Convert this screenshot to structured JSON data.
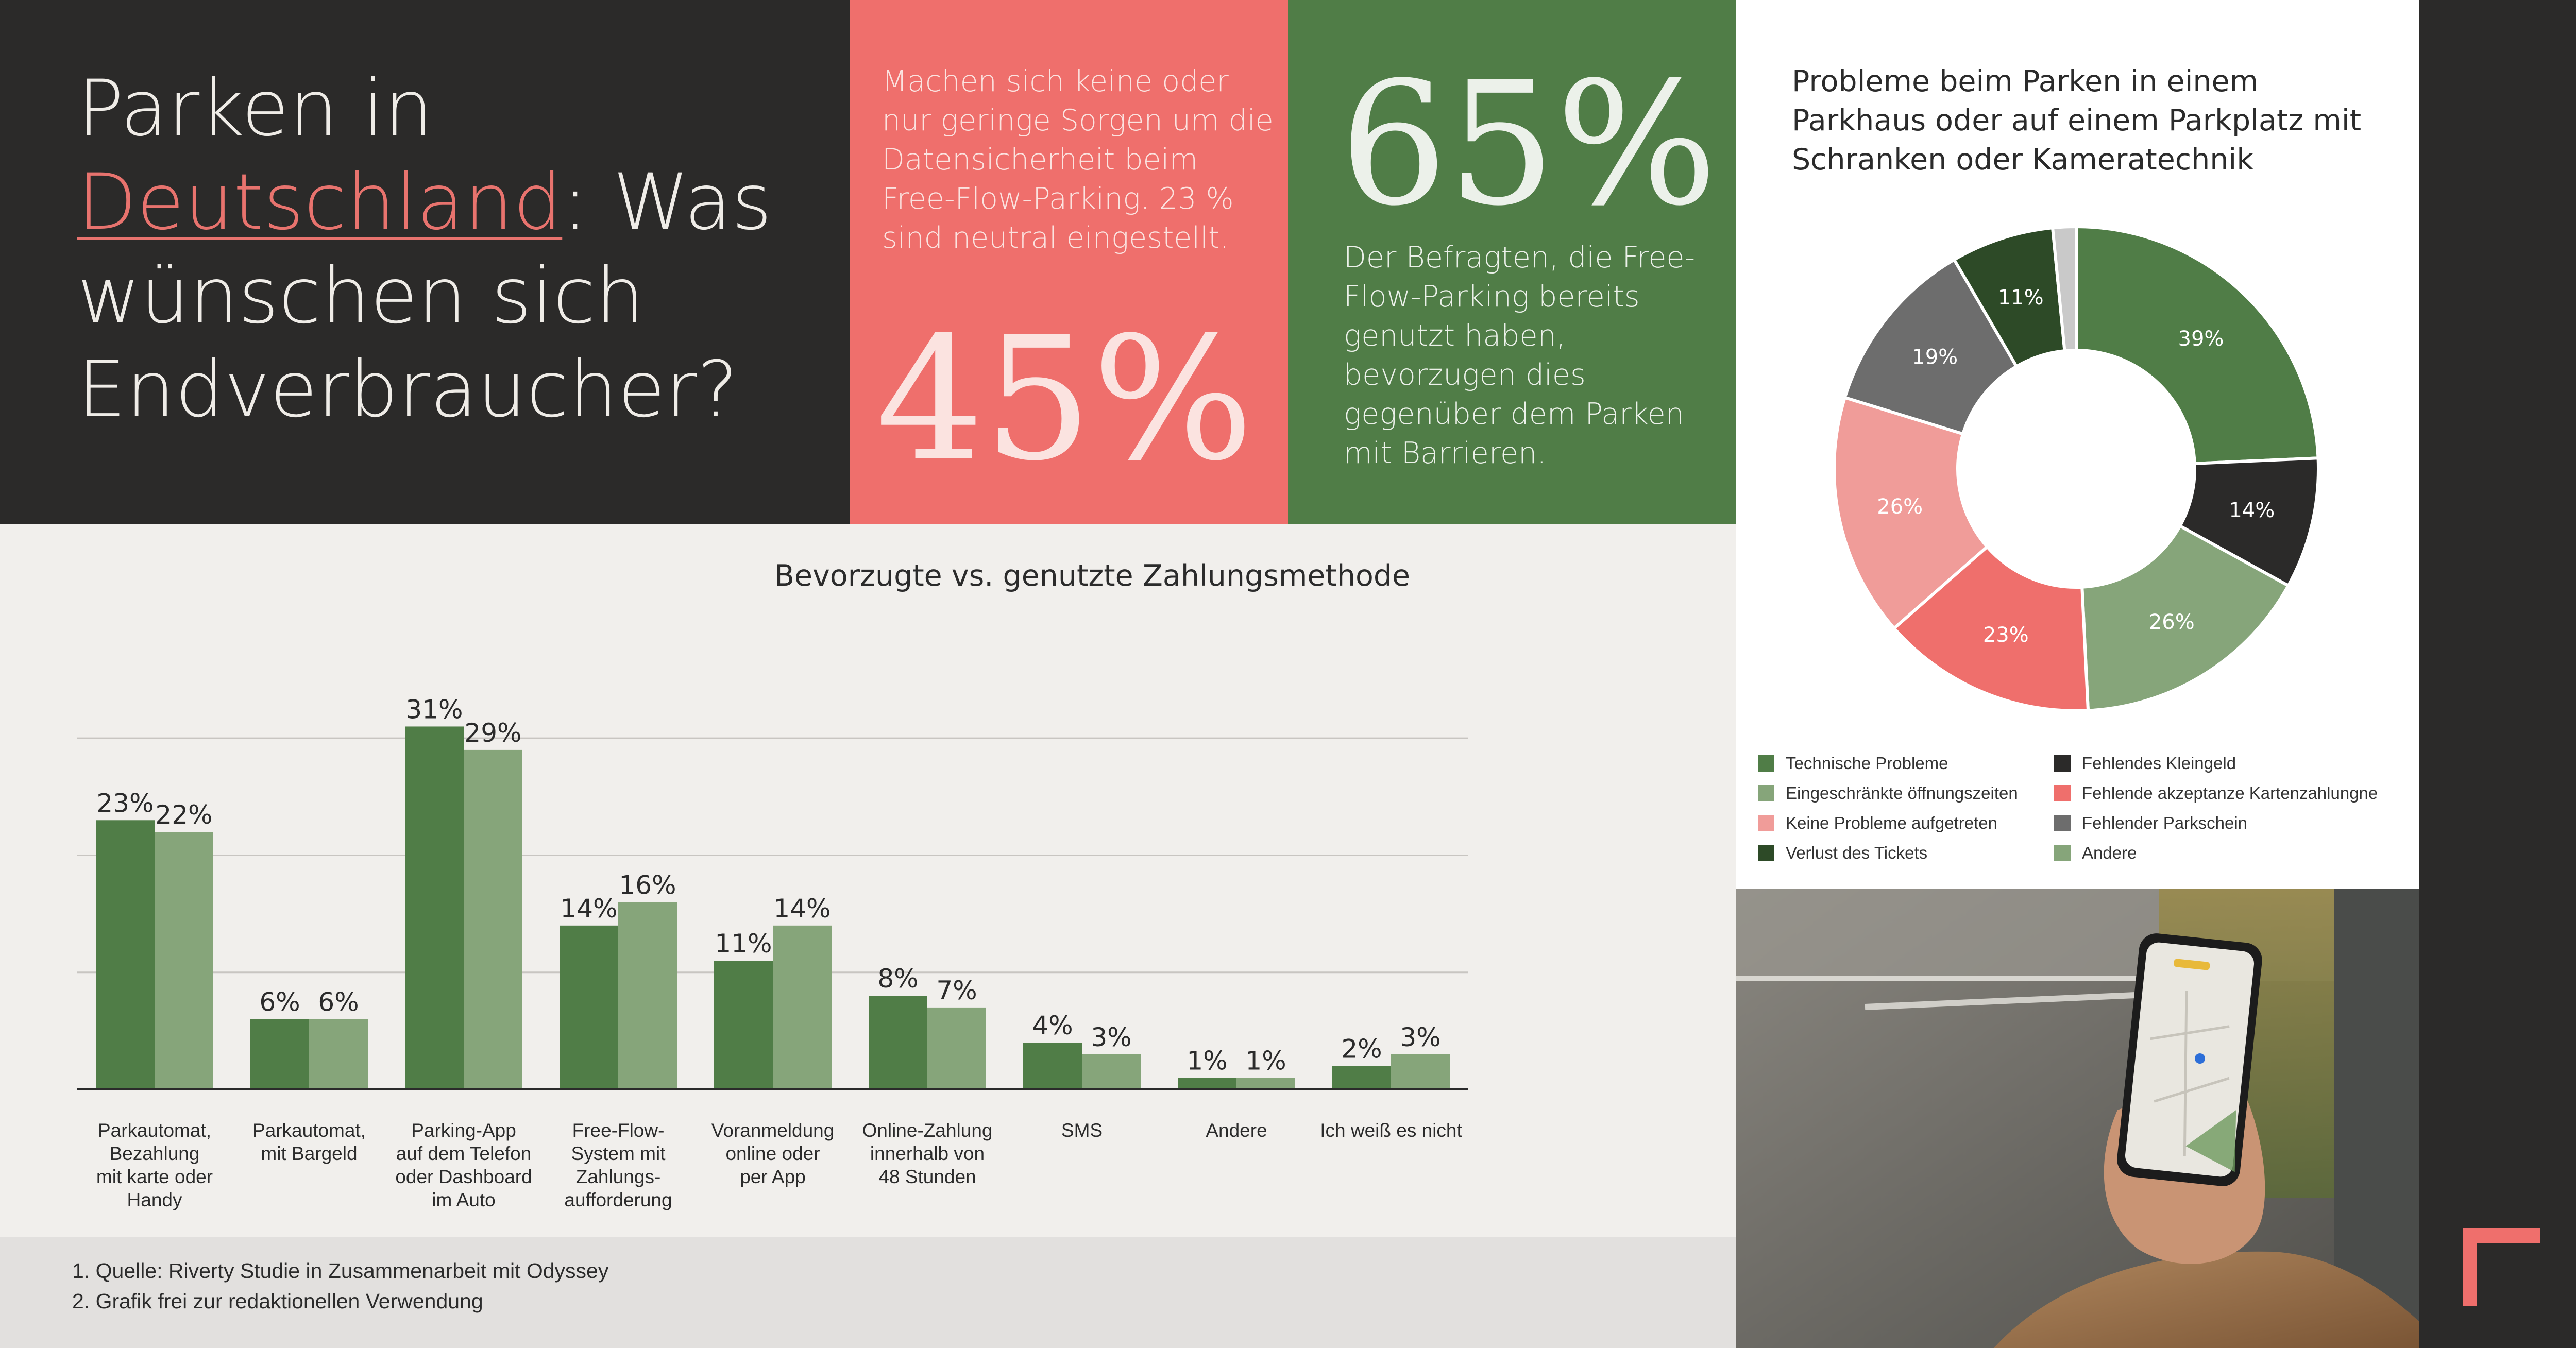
{
  "headline": {
    "before": "Parken in",
    "highlight": "Deutschland",
    "after": ": Was wünschen sich Endverbraucher?"
  },
  "stat_pink": {
    "text": "Machen sich keine oder nur geringe Sorgen um die Datensicherheit beim Free-Flow-Parking. 23 % sind neutral eingestellt.",
    "value": "45%"
  },
  "stat_green": {
    "value": "65%",
    "text": "Der Befragten, die Free-Flow-Parking bereits genutzt haben, bevorzugen dies gegenüber dem Parken mit Barrieren."
  },
  "colors": {
    "dark": "#2b2a29",
    "pink": "#ef6f6c",
    "green": "#507d47",
    "light_green": "#86a57a",
    "background": "#f1efec"
  },
  "chart_data": [
    {
      "type": "bar",
      "title": "Bevorzugte vs. genutzte Zahlungsmethode",
      "categories": [
        "Parkautomat, Bezahlung mit karte oder Handy",
        "Parkautomat, mit Bargeld",
        "Parking-App auf dem Telefon oder Dashboard im Auto",
        "Free-Flow-System mit Zahlungs-aufforderung",
        "Voranmeldung online oder per App",
        "Online-Zahlung innerhalb von 48 Stunden",
        "SMS",
        "Andere",
        "Ich weiß es nicht"
      ],
      "category_lines": [
        [
          "Parkautomat,",
          "Bezahlung",
          "mit karte oder",
          "Handy"
        ],
        [
          "Parkautomat,",
          "mit Bargeld"
        ],
        [
          "Parking-App",
          "auf dem Telefon",
          "oder Dashboard",
          "im Auto"
        ],
        [
          "Free-Flow-",
          "System mit",
          "Zahlungs-",
          "aufforderung"
        ],
        [
          "Voranmeldung",
          "online oder",
          "per App"
        ],
        [
          "Online-Zahlung",
          "innerhalb von",
          "48 Stunden"
        ],
        [
          "SMS"
        ],
        [
          "Andere"
        ],
        [
          "Ich weiß es nicht"
        ]
      ],
      "series": [
        {
          "values": [
            23,
            6,
            31,
            14,
            11,
            8,
            4,
            1,
            2
          ],
          "color": "#507d47"
        },
        {
          "values": [
            22,
            6,
            29,
            16,
            14,
            7,
            3,
            1,
            3
          ],
          "color": "#86a57a"
        }
      ],
      "value_suffix": "%",
      "ylim": [
        0,
        33
      ],
      "gridlines": [
        10,
        20,
        30
      ],
      "grid": true,
      "legend": false
    },
    {
      "type": "pie",
      "donut": true,
      "title": "Probleme beim Parken in einem Parkhaus oder auf einem Parkplatz mit Schranken oder Kameratechnik",
      "slices": [
        {
          "label": "Technische Probleme",
          "value": 39,
          "display": "39%",
          "color": "#507d47"
        },
        {
          "label": "Fehlendes Kleingeld",
          "value": 14,
          "display": "14%",
          "color": "#2b2a29"
        },
        {
          "label": "Eingeschränkte öffnungszeiten",
          "value": 26,
          "display": "26%",
          "color": "#86a57a"
        },
        {
          "label": "Fehlende akzeptanze Kartenzahlungne",
          "value": 23,
          "display": "23%",
          "color": "#ef6f6c"
        },
        {
          "label": "Keine Probleme aufgetreten",
          "value": 26,
          "display": "26%",
          "color": "#f09c99"
        },
        {
          "label": "Fehlender Parkschein",
          "value": 19,
          "display": "19%",
          "color": "#6d6d6d"
        },
        {
          "label": "Verlust des Tickets",
          "value": 11,
          "display": "11%",
          "color": "#2d4a27"
        },
        {
          "label": "Andere",
          "value": 2.5,
          "display": "",
          "color": "#c9c9c9"
        }
      ],
      "legend_position": "bottom",
      "legend_items": [
        {
          "label": "Technische Probleme",
          "color": "#507d47"
        },
        {
          "label": "Fehlendes Kleingeld",
          "color": "#2b2a29"
        },
        {
          "label": "Eingeschränkte öffnungszeiten",
          "color": "#86a57a"
        },
        {
          "label": "Fehlende akzeptanze Kartenzahlungne",
          "color": "#ef6f6c"
        },
        {
          "label": "Keine Probleme aufgetreten",
          "color": "#f09c99"
        },
        {
          "label": "Fehlender Parkschein",
          "color": "#6d6d6d"
        },
        {
          "label": "Verlust des Tickets",
          "color": "#2d4a27"
        },
        {
          "label": "Andere",
          "color": "#86a57a"
        }
      ]
    }
  ],
  "footnotes": [
    "1.  Quelle: Riverty Studie in Zusammenarbeit mit Odyssey",
    "2. Grafik frei zur redaktionellen Verwendung"
  ]
}
